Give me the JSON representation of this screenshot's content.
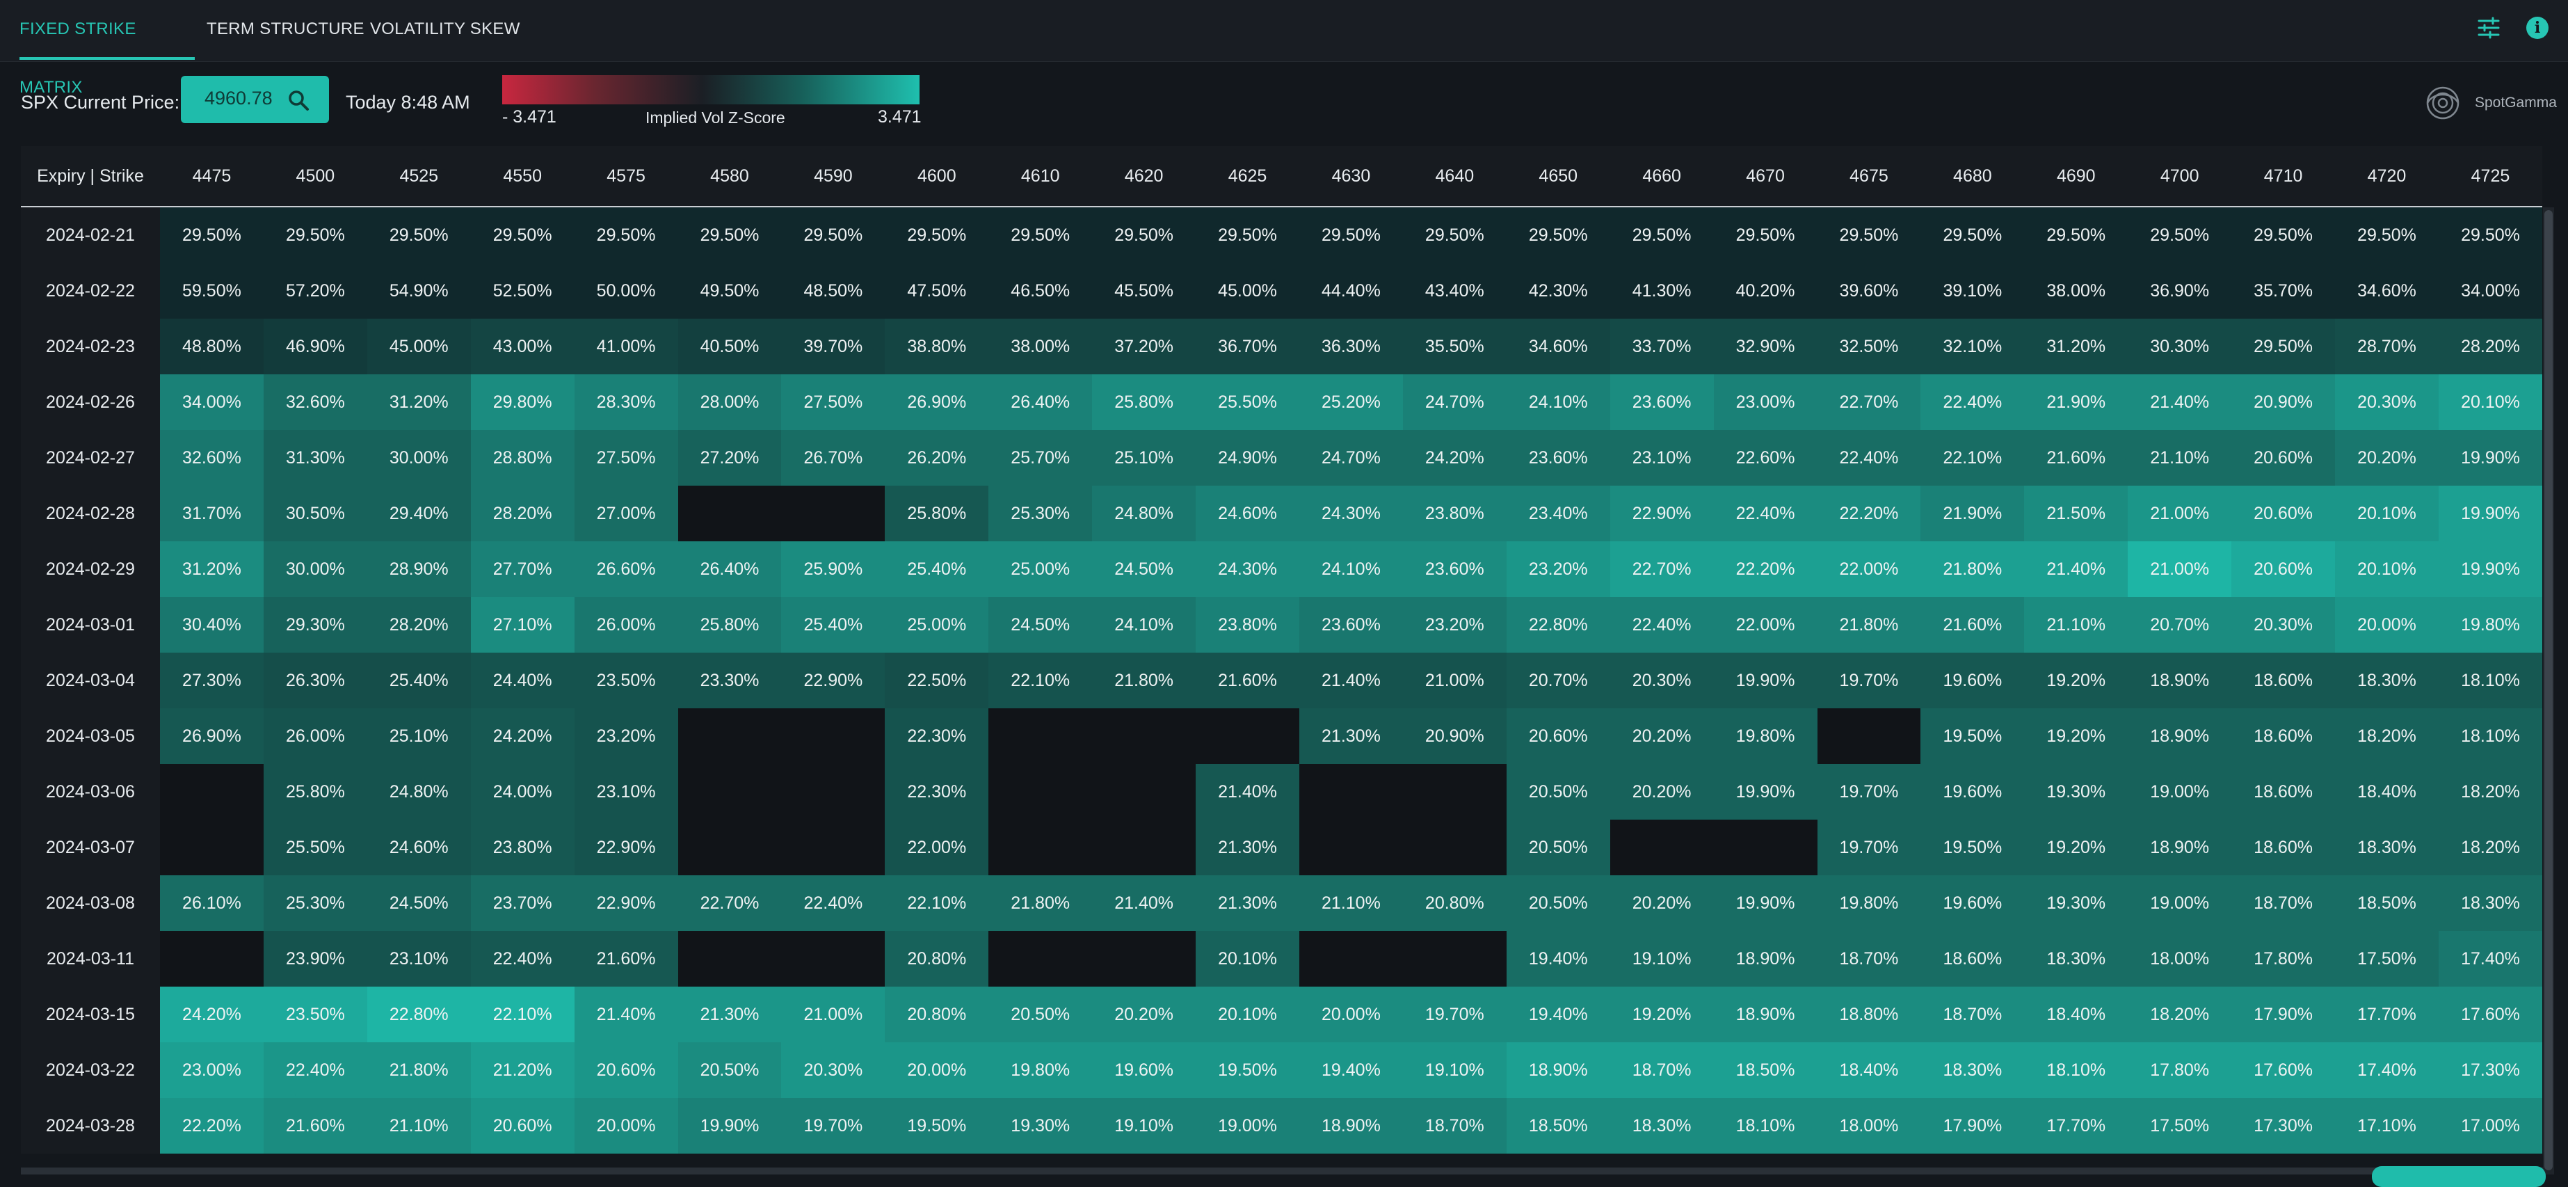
{
  "nav": {
    "tabs": [
      {
        "label": "FIXED STRIKE MATRIX",
        "active": true
      },
      {
        "label": "TERM STRUCTURE",
        "active": false
      },
      {
        "label": "VOLATILITY SKEW",
        "active": false
      }
    ],
    "icons": [
      "tune-icon",
      "info-icon"
    ]
  },
  "controls": {
    "price_label": "SPX Current Price:",
    "price_value": "4960.78",
    "timestamp": "Today 8:48 AM"
  },
  "legend": {
    "min": "- 3.471",
    "title": "Implied Vol Z-Score",
    "max": "3.471",
    "colors": {
      "negative": "#c8273f",
      "neutral": "#1b1f25",
      "positive": "#1fbfae"
    }
  },
  "brand": "SpotGamma",
  "table": {
    "corner_label": "Expiry | Strike",
    "strikes": [
      "4475",
      "4500",
      "4525",
      "4550",
      "4575",
      "4580",
      "4590",
      "4600",
      "4610",
      "4620",
      "4625",
      "4630",
      "4640",
      "4650",
      "4660",
      "4670",
      "4675",
      "4680",
      "4690",
      "4700",
      "4710",
      "4720",
      "4725"
    ],
    "rows": [
      {
        "expiry": "2024-02-21",
        "values": [
          "29.50%",
          "29.50%",
          "29.50%",
          "29.50%",
          "29.50%",
          "29.50%",
          "29.50%",
          "29.50%",
          "29.50%",
          "29.50%",
          "29.50%",
          "29.50%",
          "29.50%",
          "29.50%",
          "29.50%",
          "29.50%",
          "29.50%",
          "29.50%",
          "29.50%",
          "29.50%",
          "29.50%",
          "29.50%",
          "29.50%"
        ],
        "z": [
          0,
          0,
          0,
          0,
          0,
          0,
          0,
          0,
          0,
          0,
          0,
          0,
          0,
          0,
          0,
          0,
          0,
          0,
          0,
          0,
          0,
          0,
          0
        ]
      },
      {
        "expiry": "2024-02-22",
        "values": [
          "59.50%",
          "57.20%",
          "54.90%",
          "52.50%",
          "50.00%",
          "49.50%",
          "48.50%",
          "47.50%",
          "46.50%",
          "45.50%",
          "45.00%",
          "44.40%",
          "43.40%",
          "42.30%",
          "41.30%",
          "40.20%",
          "39.60%",
          "39.10%",
          "38.00%",
          "36.90%",
          "35.70%",
          "34.60%",
          "34.00%"
        ],
        "z": [
          0,
          0,
          0,
          0,
          0,
          0,
          0,
          0,
          0,
          0,
          0,
          0,
          0,
          0,
          0,
          0,
          0,
          0,
          0,
          0,
          0,
          0,
          0
        ]
      },
      {
        "expiry": "2024-02-23",
        "values": [
          "48.80%",
          "46.90%",
          "45.00%",
          "43.00%",
          "41.00%",
          "40.50%",
          "39.70%",
          "38.80%",
          "38.00%",
          "37.20%",
          "36.70%",
          "36.30%",
          "35.50%",
          "34.60%",
          "33.70%",
          "32.90%",
          "32.50%",
          "32.10%",
          "31.20%",
          "30.30%",
          "29.50%",
          "28.70%",
          "28.20%"
        ],
        "z": [
          0.15,
          0.2,
          0.25,
          0.3,
          0.3,
          0.25,
          0.25,
          0.3,
          0.3,
          0.3,
          0.3,
          0.3,
          0.3,
          0.3,
          0.35,
          0.35,
          0.35,
          0.35,
          0.35,
          0.35,
          0.35,
          0.4,
          0.4
        ]
      },
      {
        "expiry": "2024-02-26",
        "values": [
          "34.00%",
          "32.60%",
          "31.20%",
          "29.80%",
          "28.30%",
          "28.00%",
          "27.50%",
          "26.90%",
          "26.40%",
          "25.80%",
          "25.50%",
          "25.20%",
          "24.70%",
          "24.10%",
          "23.60%",
          "23.00%",
          "22.70%",
          "22.40%",
          "21.90%",
          "21.40%",
          "20.90%",
          "20.30%",
          "20.10%"
        ],
        "z": [
          0.7,
          0.6,
          0.6,
          0.75,
          0.7,
          0.65,
          0.7,
          0.7,
          0.7,
          0.75,
          0.75,
          0.75,
          0.7,
          0.7,
          0.75,
          0.7,
          0.7,
          0.75,
          0.75,
          0.75,
          0.75,
          0.8,
          0.85
        ]
      },
      {
        "expiry": "2024-02-27",
        "values": [
          "32.60%",
          "31.30%",
          "30.00%",
          "28.80%",
          "27.50%",
          "27.20%",
          "26.70%",
          "26.20%",
          "25.70%",
          "25.10%",
          "24.90%",
          "24.70%",
          "24.20%",
          "23.60%",
          "23.10%",
          "22.60%",
          "22.40%",
          "22.10%",
          "21.60%",
          "21.10%",
          "20.60%",
          "20.20%",
          "19.90%"
        ],
        "z": [
          0.65,
          0.55,
          0.55,
          0.65,
          0.6,
          0.55,
          0.6,
          0.6,
          0.6,
          0.6,
          0.6,
          0.6,
          0.6,
          0.6,
          0.6,
          0.6,
          0.6,
          0.6,
          0.6,
          0.6,
          0.6,
          0.65,
          0.65
        ]
      },
      {
        "expiry": "2024-02-28",
        "values": [
          "31.70%",
          "30.50%",
          "29.40%",
          "28.20%",
          "27.00%",
          "",
          "",
          "25.80%",
          "25.30%",
          "24.80%",
          "24.60%",
          "24.30%",
          "23.80%",
          "23.40%",
          "22.90%",
          "22.40%",
          "22.20%",
          "21.90%",
          "21.50%",
          "21.00%",
          "20.60%",
          "20.10%",
          "19.90%"
        ],
        "z": [
          0.65,
          0.55,
          0.55,
          0.65,
          0.6,
          null,
          null,
          0.5,
          0.6,
          0.65,
          0.7,
          0.7,
          0.7,
          0.7,
          0.75,
          0.75,
          0.75,
          0.7,
          0.75,
          0.8,
          0.8,
          0.8,
          0.85
        ]
      },
      {
        "expiry": "2024-02-29",
        "values": [
          "31.20%",
          "30.00%",
          "28.90%",
          "27.70%",
          "26.60%",
          "26.40%",
          "25.90%",
          "25.40%",
          "25.00%",
          "24.50%",
          "24.30%",
          "24.10%",
          "23.60%",
          "23.20%",
          "22.70%",
          "22.20%",
          "22.00%",
          "21.80%",
          "21.40%",
          "21.00%",
          "20.60%",
          "20.10%",
          "19.90%"
        ],
        "z": [
          0.75,
          0.6,
          0.6,
          0.7,
          0.7,
          0.7,
          0.75,
          0.75,
          0.75,
          0.75,
          0.75,
          0.75,
          0.75,
          0.8,
          0.85,
          0.85,
          0.85,
          0.85,
          0.85,
          0.95,
          0.9,
          0.85,
          0.85
        ]
      },
      {
        "expiry": "2024-03-01",
        "values": [
          "30.40%",
          "29.30%",
          "28.20%",
          "27.10%",
          "26.00%",
          "25.80%",
          "25.40%",
          "25.00%",
          "24.50%",
          "24.10%",
          "23.80%",
          "23.60%",
          "23.20%",
          "22.80%",
          "22.40%",
          "22.00%",
          "21.80%",
          "21.60%",
          "21.10%",
          "20.70%",
          "20.30%",
          "20.00%",
          "19.80%"
        ],
        "z": [
          0.65,
          0.55,
          0.55,
          0.75,
          0.65,
          0.65,
          0.7,
          0.7,
          0.65,
          0.65,
          0.7,
          0.65,
          0.65,
          0.7,
          0.7,
          0.7,
          0.7,
          0.7,
          0.75,
          0.75,
          0.75,
          0.8,
          0.8
        ]
      },
      {
        "expiry": "2024-03-04",
        "values": [
          "27.30%",
          "26.30%",
          "25.40%",
          "24.40%",
          "23.50%",
          "23.30%",
          "22.90%",
          "22.50%",
          "22.10%",
          "21.80%",
          "21.60%",
          "21.40%",
          "21.00%",
          "20.70%",
          "20.30%",
          "19.90%",
          "19.70%",
          "19.60%",
          "19.20%",
          "18.90%",
          "18.60%",
          "18.30%",
          "18.10%"
        ],
        "z": [
          0.45,
          0.4,
          0.4,
          0.45,
          0.45,
          0.45,
          0.45,
          0.4,
          0.45,
          0.45,
          0.45,
          0.45,
          0.45,
          0.5,
          0.5,
          0.5,
          0.5,
          0.5,
          0.5,
          0.5,
          0.5,
          0.5,
          0.5
        ]
      },
      {
        "expiry": "2024-03-05",
        "values": [
          "26.90%",
          "26.00%",
          "25.10%",
          "24.20%",
          "23.20%",
          "",
          "",
          "22.30%",
          "",
          "",
          "",
          "21.30%",
          "20.90%",
          "20.60%",
          "20.20%",
          "19.80%",
          "",
          "19.50%",
          "19.20%",
          "18.90%",
          "18.60%",
          "18.20%",
          "18.10%"
        ],
        "z": [
          0.5,
          0.45,
          0.45,
          0.5,
          0.45,
          null,
          null,
          0.45,
          null,
          null,
          null,
          0.5,
          0.5,
          0.55,
          0.55,
          0.55,
          null,
          0.55,
          0.55,
          0.55,
          0.55,
          0.55,
          0.55
        ]
      },
      {
        "expiry": "2024-03-06",
        "values": [
          "",
          "25.80%",
          "24.80%",
          "24.00%",
          "23.10%",
          "",
          "",
          "22.30%",
          "",
          "",
          "21.40%",
          "",
          "",
          "20.50%",
          "20.20%",
          "19.90%",
          "19.70%",
          "19.60%",
          "19.30%",
          "19.00%",
          "18.60%",
          "18.40%",
          "18.20%"
        ],
        "z": [
          null,
          0.45,
          0.45,
          0.5,
          0.45,
          null,
          null,
          0.45,
          null,
          null,
          0.5,
          null,
          null,
          0.55,
          0.55,
          0.55,
          0.55,
          0.55,
          0.55,
          0.55,
          0.55,
          0.55,
          0.55
        ]
      },
      {
        "expiry": "2024-03-07",
        "values": [
          "",
          "25.50%",
          "24.60%",
          "23.80%",
          "22.90%",
          "",
          "",
          "22.00%",
          "",
          "",
          "21.30%",
          "",
          "",
          "20.50%",
          "",
          "",
          "19.70%",
          "19.50%",
          "19.20%",
          "18.90%",
          "18.60%",
          "18.30%",
          "18.20%"
        ],
        "z": [
          null,
          0.45,
          0.45,
          0.5,
          0.45,
          null,
          null,
          0.45,
          null,
          null,
          0.5,
          null,
          null,
          0.55,
          null,
          null,
          0.55,
          0.55,
          0.55,
          0.55,
          0.55,
          0.55,
          0.55
        ]
      },
      {
        "expiry": "2024-03-08",
        "values": [
          "26.10%",
          "25.30%",
          "24.50%",
          "23.70%",
          "22.90%",
          "22.70%",
          "22.40%",
          "22.10%",
          "21.80%",
          "21.40%",
          "21.30%",
          "21.10%",
          "20.80%",
          "20.50%",
          "20.20%",
          "19.90%",
          "19.80%",
          "19.60%",
          "19.30%",
          "19.00%",
          "18.70%",
          "18.50%",
          "18.30%"
        ],
        "z": [
          0.6,
          0.55,
          0.55,
          0.6,
          0.6,
          0.6,
          0.6,
          0.6,
          0.6,
          0.6,
          0.6,
          0.6,
          0.6,
          0.6,
          0.6,
          0.6,
          0.6,
          0.6,
          0.6,
          0.6,
          0.6,
          0.6,
          0.6
        ]
      },
      {
        "expiry": "2024-03-11",
        "values": [
          "",
          "23.90%",
          "23.10%",
          "22.40%",
          "21.60%",
          "",
          "",
          "20.80%",
          "",
          "",
          "20.10%",
          "",
          "",
          "19.40%",
          "19.10%",
          "18.90%",
          "18.70%",
          "18.60%",
          "18.30%",
          "18.00%",
          "17.80%",
          "17.50%",
          "17.40%"
        ],
        "z": [
          null,
          0.45,
          0.45,
          0.5,
          0.5,
          null,
          null,
          0.55,
          null,
          null,
          0.55,
          null,
          null,
          0.6,
          0.6,
          0.6,
          0.6,
          0.6,
          0.6,
          0.6,
          0.6,
          0.6,
          0.65
        ]
      },
      {
        "expiry": "2024-03-15",
        "values": [
          "24.20%",
          "23.50%",
          "22.80%",
          "22.10%",
          "21.40%",
          "21.30%",
          "21.00%",
          "20.80%",
          "20.50%",
          "20.20%",
          "20.10%",
          "20.00%",
          "19.70%",
          "19.40%",
          "19.20%",
          "18.90%",
          "18.80%",
          "18.70%",
          "18.40%",
          "18.20%",
          "17.90%",
          "17.70%",
          "17.60%"
        ],
        "z": [
          0.9,
          0.9,
          0.95,
          0.95,
          0.8,
          0.8,
          0.8,
          0.75,
          0.75,
          0.75,
          0.75,
          0.75,
          0.75,
          0.75,
          0.75,
          0.75,
          0.75,
          0.75,
          0.75,
          0.75,
          0.75,
          0.75,
          0.75
        ]
      },
      {
        "expiry": "2024-03-22",
        "values": [
          "23.00%",
          "22.40%",
          "21.80%",
          "21.20%",
          "20.60%",
          "20.50%",
          "20.30%",
          "20.00%",
          "19.80%",
          "19.60%",
          "19.50%",
          "19.40%",
          "19.10%",
          "18.90%",
          "18.70%",
          "18.50%",
          "18.40%",
          "18.30%",
          "18.10%",
          "17.80%",
          "17.60%",
          "17.40%",
          "17.30%"
        ],
        "z": [
          0.85,
          0.8,
          0.8,
          0.85,
          0.8,
          0.75,
          0.8,
          0.8,
          0.8,
          0.8,
          0.8,
          0.8,
          0.8,
          0.85,
          0.85,
          0.85,
          0.85,
          0.85,
          0.85,
          0.85,
          0.85,
          0.85,
          0.85
        ]
      },
      {
        "expiry": "2024-03-28",
        "values": [
          "22.20%",
          "21.60%",
          "21.10%",
          "20.60%",
          "20.00%",
          "19.90%",
          "19.70%",
          "19.50%",
          "19.30%",
          "19.10%",
          "19.00%",
          "18.90%",
          "18.70%",
          "18.50%",
          "18.30%",
          "18.10%",
          "18.00%",
          "17.90%",
          "17.70%",
          "17.50%",
          "17.30%",
          "17.10%",
          "17.00%"
        ],
        "z": [
          0.8,
          0.75,
          0.75,
          0.8,
          0.75,
          0.7,
          0.7,
          0.7,
          0.7,
          0.7,
          0.7,
          0.7,
          0.7,
          0.75,
          0.75,
          0.75,
          0.75,
          0.75,
          0.75,
          0.75,
          0.75,
          0.75,
          0.75
        ]
      }
    ]
  }
}
